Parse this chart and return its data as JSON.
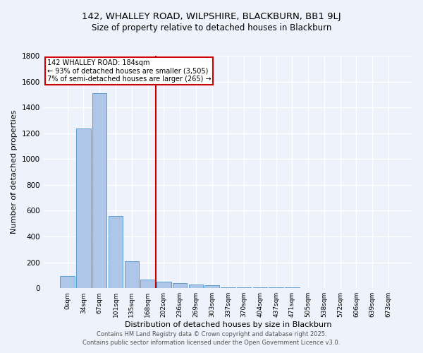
{
  "title_line1": "142, WHALLEY ROAD, WILPSHIRE, BLACKBURN, BB1 9LJ",
  "title_line2": "Size of property relative to detached houses in Blackburn",
  "xlabel": "Distribution of detached houses by size in Blackburn",
  "ylabel": "Number of detached properties",
  "annotation_title": "142 WHALLEY ROAD: 184sqm",
  "annotation_line2": "← 93% of detached houses are smaller (3,505)",
  "annotation_line3": "7% of semi-detached houses are larger (265) →",
  "categories": [
    "0sqm",
    "34sqm",
    "67sqm",
    "101sqm",
    "135sqm",
    "168sqm",
    "202sqm",
    "236sqm",
    "269sqm",
    "303sqm",
    "337sqm",
    "370sqm",
    "404sqm",
    "437sqm",
    "471sqm",
    "505sqm",
    "538sqm",
    "572sqm",
    "606sqm",
    "639sqm",
    "673sqm"
  ],
  "values": [
    95,
    1235,
    1510,
    560,
    210,
    65,
    50,
    40,
    30,
    25,
    5,
    5,
    5,
    5,
    5,
    0,
    0,
    0,
    0,
    0,
    0
  ],
  "bar_color": "#aec6e8",
  "bar_edge_color": "#5a9fd4",
  "vline_color": "#cc0000",
  "vline_x": 5.5,
  "annotation_box_color": "#cc0000",
  "background_color": "#eef2fa",
  "grid_color": "#ffffff",
  "footer_line1": "Contains HM Land Registry data © Crown copyright and database right 2025.",
  "footer_line2": "Contains public sector information licensed under the Open Government Licence v3.0.",
  "ylim": [
    0,
    1800
  ],
  "yticks": [
    0,
    200,
    400,
    600,
    800,
    1000,
    1200,
    1400,
    1600,
    1800
  ]
}
